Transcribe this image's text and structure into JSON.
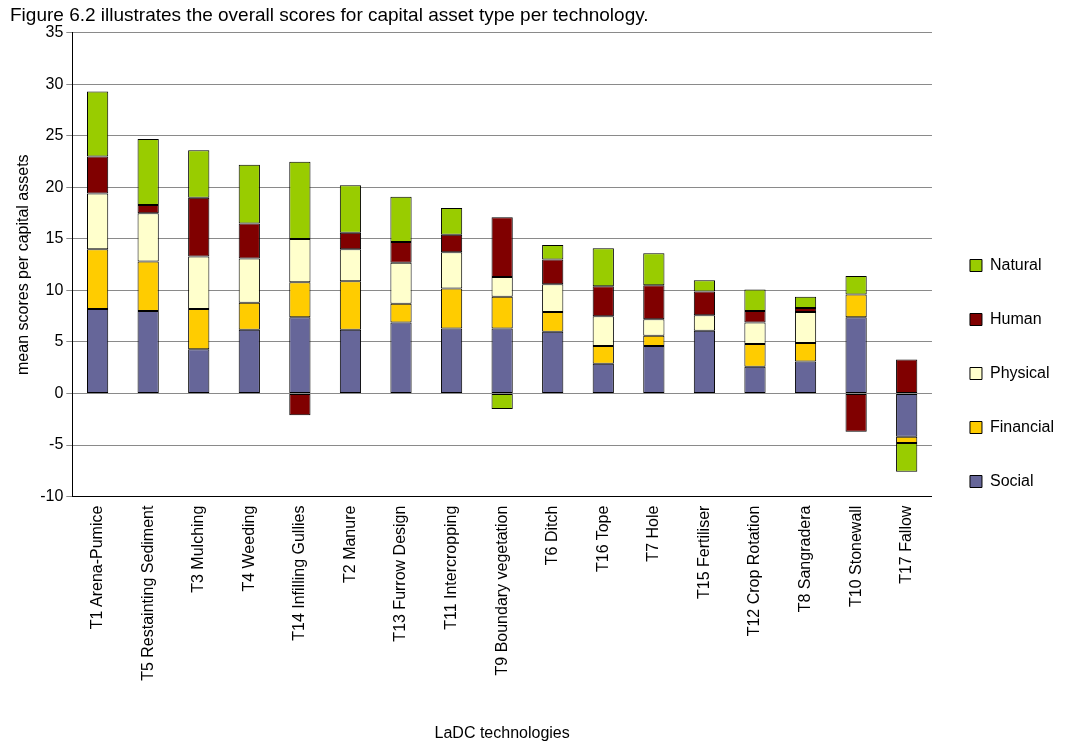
{
  "chart_data": {
    "type": "bar",
    "title": "Figure 6.2 illustrates the overall scores for capital asset type per technology.",
    "xlabel": "LaDC technologies",
    "ylabel": "mean scores per capital assets",
    "stacked": true,
    "legend": "right",
    "grid": "y",
    "categories": [
      "T1 Arena-Pumice",
      "T5 Restainting Sediment",
      "T3 Mulching",
      "T4 Weeding",
      "T14 Infilling Gullies",
      "T2 Manure",
      "T13 Furrow Design",
      "T11 Intercropping",
      "T9 Boundary vegetation",
      "T6 Ditch",
      "T16 Tope",
      "T7 Hole",
      "T15 Fertiliser",
      "T12 Crop Rotation",
      "T8 Sangradera",
      "T10 Stonewall",
      "T17 Fallow"
    ],
    "ylim": [
      -10,
      35
    ],
    "yticks": [
      -10,
      -5,
      0,
      5,
      10,
      15,
      20,
      25,
      30,
      35
    ],
    "series": [
      {
        "name": "Social",
        "color": "#666699",
        "values": [
          8.2,
          8,
          4.3,
          6.2,
          7.4,
          6.2,
          6.9,
          6.3,
          6.3,
          6.0,
          2.9,
          4.6,
          6.1,
          2.6,
          3.1,
          7.4,
          -4.2
        ]
      },
      {
        "name": "Financial",
        "color": "#ffcc00",
        "values": [
          5.8,
          4.8,
          3.9,
          2.6,
          3.4,
          4.7,
          1.8,
          3.9,
          3.1,
          1.9,
          1.7,
          1.0,
          0,
          2.2,
          1.8,
          2.2,
          -0.6
        ]
      },
      {
        "name": "Physical",
        "color": "#ffffcc",
        "values": [
          5.4,
          4.7,
          5.1,
          4.3,
          4.2,
          3.1,
          4.0,
          3.5,
          1.9,
          2.7,
          2.9,
          1.6,
          1.5,
          2.1,
          3.0,
          0,
          0
        ]
      },
      {
        "name": "Human",
        "color": "#800000",
        "values": [
          3.6,
          0.8,
          5.7,
          3.4,
          -2.1,
          1.6,
          2.0,
          1.7,
          5.8,
          2.4,
          2.9,
          3.3,
          2.3,
          1.1,
          0.4,
          -3.7,
          3.3
        ]
      },
      {
        "name": "Natural",
        "color": "#99cc00",
        "values": [
          6.3,
          6.4,
          4.6,
          5.7,
          7.5,
          4.6,
          4.4,
          2.6,
          -1.5,
          1.4,
          3.7,
          3.1,
          1.1,
          2.1,
          1.1,
          1.8,
          -2.8
        ]
      }
    ]
  }
}
